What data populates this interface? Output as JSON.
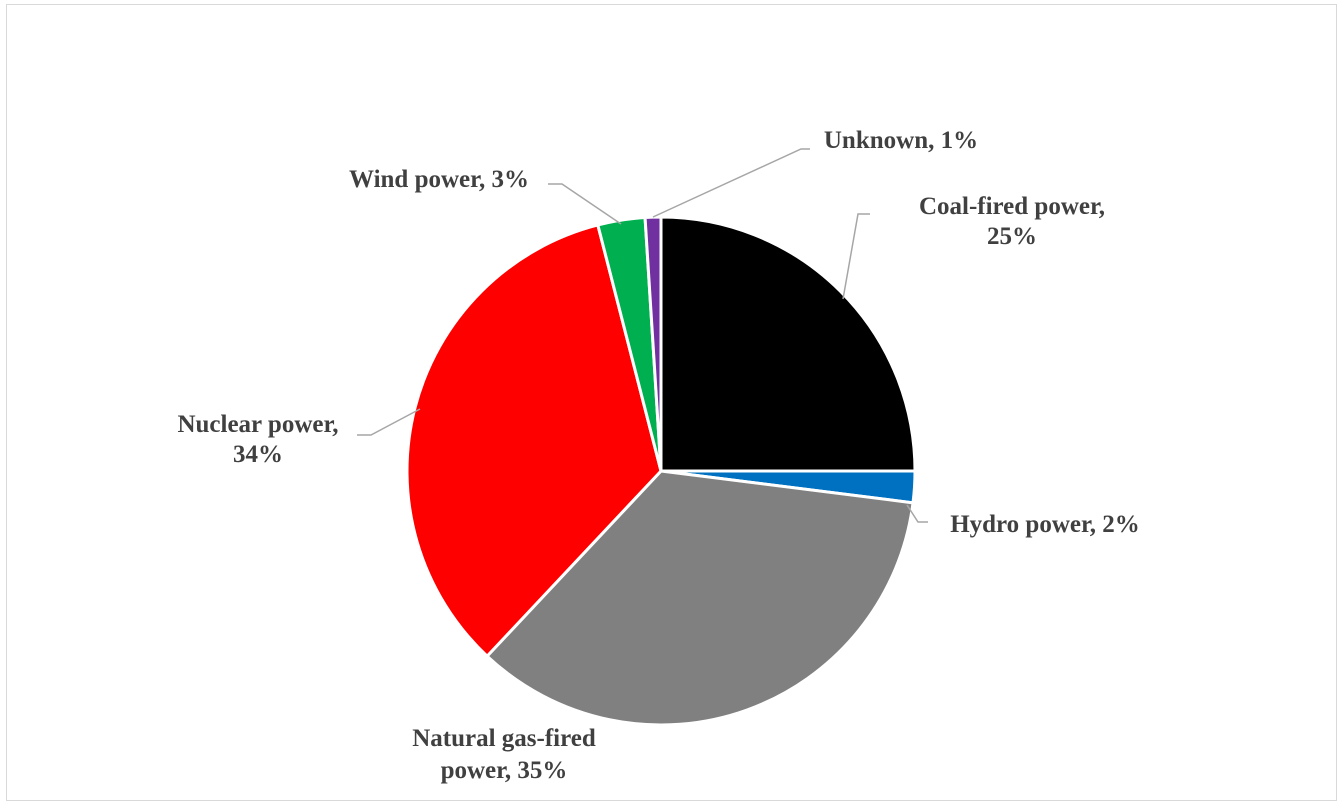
{
  "chart_data": {
    "type": "pie",
    "title": "",
    "start_angle_deg": 0,
    "direction": "clockwise",
    "slices": [
      {
        "name": "Coal-fired power",
        "value": 25,
        "label_lines": [
          "Coal-fired power,",
          "25%"
        ],
        "color": "#000000"
      },
      {
        "name": "Hydro power",
        "value": 2,
        "label_lines": [
          "Hydro power, 2%"
        ],
        "color": "#0070c0"
      },
      {
        "name": "Natural gas-fired power",
        "value": 35,
        "label_lines": [
          "Natural gas-fired",
          "power, 35%"
        ],
        "color": "#808080"
      },
      {
        "name": "Nuclear power",
        "value": 34,
        "label_lines": [
          "Nuclear power,",
          "34%"
        ],
        "color": "#ff0000"
      },
      {
        "name": "Wind power",
        "value": 3,
        "label_lines": [
          "Wind power, 3%"
        ],
        "color": "#00b050"
      },
      {
        "name": "Unknown",
        "value": 1,
        "label_lines": [
          "Unknown, 1%"
        ],
        "color": "#7030a0"
      }
    ],
    "legend": "none",
    "slice_border_color": "#ffffff",
    "leader_line_color": "#a6a6a6"
  }
}
